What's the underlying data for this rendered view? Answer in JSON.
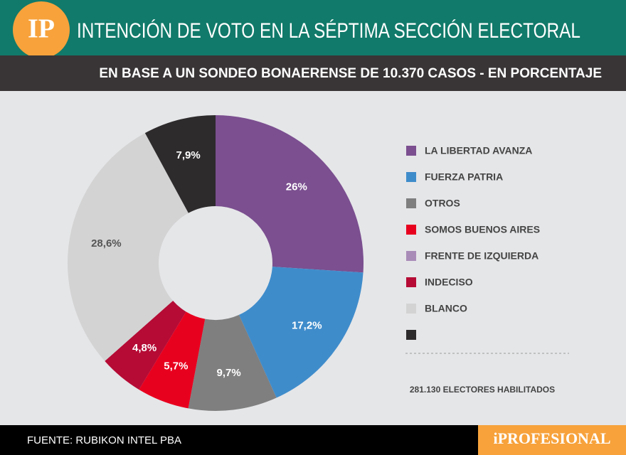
{
  "logo": "IP",
  "chart_data": {
    "type": "pie",
    "title": "INTENCIÓN DE VOTO EN LA SÉPTIMA SECCIÓN ELECTORAL",
    "subtitle": "EN BASE A UN SONDEO BONAERENSE DE 10.370 CASOS - EN PORCENTAJE",
    "categories": [
      "LA LIBERTAD AVANZA",
      "FUERZA PATRIA",
      "OTROS",
      "SOMOS BUENOS AIRES",
      "FRENTE DE IZQUIERDA",
      "INDECISO",
      "BLANCO",
      null
    ],
    "values": [
      26,
      17.2,
      9.7,
      5.7,
      null,
      4.8,
      28.6,
      7.9
    ],
    "value_labels": [
      "26%",
      "17,2%",
      "9,7%",
      "5,7%",
      null,
      "4,8%",
      "28,6%",
      "7,9%"
    ],
    "colors": [
      "#7b4f90",
      "#3f8ccb",
      "#7f7f7f",
      "#e8001f",
      "#a98bb8",
      "#b50b35",
      "#d3d3d3",
      "#2e2b2c"
    ],
    "donut": true
  },
  "note": "281.130 ELECTORES HABILITADOS",
  "source": "FUENTE: RUBIKON INTEL PBA",
  "brand": "iPROFESIONAL"
}
